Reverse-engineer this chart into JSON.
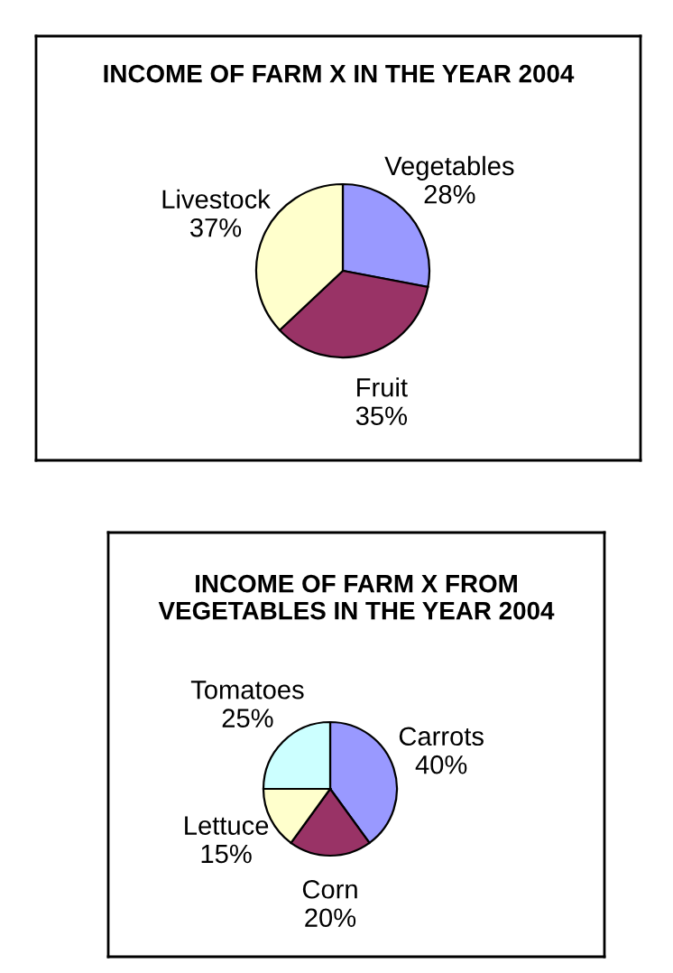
{
  "chart_data": [
    {
      "type": "pie",
      "title": "INCOME OF FARM X IN THE YEAR 2004",
      "categories": [
        "Vegetables",
        "Fruit",
        "Livestock"
      ],
      "values": [
        28,
        35,
        37
      ],
      "colors": [
        "#9999ff",
        "#993366",
        "#ffffcc"
      ],
      "value_labels": [
        "28%",
        "35%",
        "37%"
      ]
    },
    {
      "type": "pie",
      "title": "INCOME OF FARM X FROM\nVEGETABLES IN THE YEAR 2004",
      "categories": [
        "Carrots",
        "Corn",
        "Lettuce",
        "Tomatoes"
      ],
      "values": [
        40,
        20,
        15,
        25
      ],
      "colors": [
        "#9999ff",
        "#993366",
        "#ffffcc",
        "#ccffff"
      ],
      "value_labels": [
        "40%",
        "20%",
        "15%",
        "25%"
      ]
    }
  ]
}
